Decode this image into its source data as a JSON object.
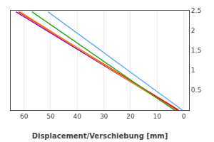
{
  "chart_data": {
    "type": "line",
    "xlabel": "Displacement/Verschiebung [mm]",
    "xlim": [
      65,
      -2
    ],
    "xticks": [
      60,
      50,
      40,
      30,
      20,
      10,
      0
    ],
    "ylim": [
      0,
      2.5
    ],
    "yticks": [
      0.5,
      1,
      1.5,
      2,
      2.5
    ],
    "grid": "x",
    "series": [
      {
        "color": "#9900CC",
        "x": [
          63.0,
          2.5
        ],
        "values": [
          2.47,
          0.0
        ]
      },
      {
        "color": "#FF0000",
        "x": [
          62.0,
          2.0
        ],
        "values": [
          2.47,
          0.0
        ]
      },
      {
        "color": "#FF8C00",
        "x": [
          61.5,
          3.0
        ],
        "values": [
          2.47,
          0.0
        ]
      },
      {
        "color": "#22AA22",
        "x": [
          57.0,
          3.5
        ],
        "values": [
          2.47,
          0.0
        ]
      },
      {
        "color": "#66AAFF",
        "x": [
          51.0,
          0.5
        ],
        "values": [
          2.47,
          0.0
        ]
      }
    ]
  }
}
